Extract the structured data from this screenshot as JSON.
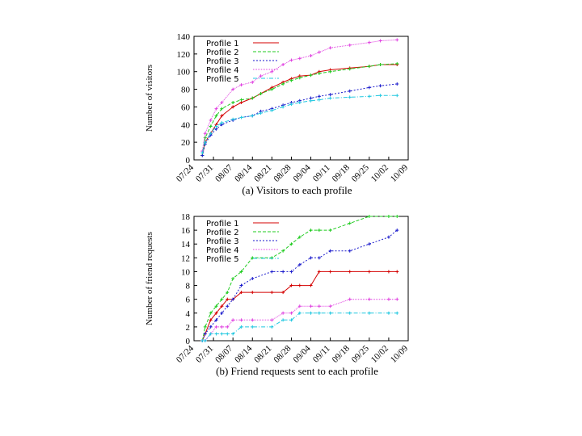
{
  "chart_data": [
    {
      "type": "line",
      "caption": "(a) Visitors to each profile",
      "y_label": "Number of visitors",
      "x": [
        "07/27",
        "07/28",
        "07/30",
        "08/01",
        "08/03",
        "08/07",
        "08/10",
        "08/14",
        "08/17",
        "08/21",
        "08/25",
        "08/28",
        "08/31",
        "09/04",
        "09/07",
        "09/11",
        "09/18",
        "09/25",
        "09/29",
        "10/05"
      ],
      "xlim": [
        "07/24",
        "10/09"
      ],
      "xticks": [
        "07/24",
        "07/31",
        "08/07",
        "08/14",
        "08/21",
        "08/28",
        "09/04",
        "09/11",
        "09/18",
        "09/25",
        "10/02",
        "10/09"
      ],
      "ylim": [
        0,
        140
      ],
      "yticks": [
        0,
        20,
        40,
        60,
        80,
        100,
        120,
        140
      ],
      "legend": "upper-left",
      "series": [
        {
          "name": "Profile 1",
          "color": "#d40000",
          "values": [
            5,
            20,
            30,
            40,
            50,
            60,
            65,
            70,
            75,
            82,
            88,
            92,
            95,
            96,
            100,
            102,
            104,
            106,
            108,
            108
          ]
        },
        {
          "name": "Profile 2",
          "color": "#22cc22",
          "values": [
            5,
            25,
            38,
            50,
            58,
            65,
            68,
            70,
            75,
            80,
            86,
            90,
            93,
            96,
            98,
            100,
            103,
            106,
            108,
            109
          ]
        },
        {
          "name": "Profile 3",
          "color": "#1a1acc",
          "values": [
            5,
            18,
            28,
            35,
            40,
            45,
            48,
            50,
            55,
            58,
            62,
            65,
            67,
            70,
            72,
            74,
            78,
            82,
            84,
            86
          ]
        },
        {
          "name": "Profile 4",
          "color": "#e040e0",
          "values": [
            10,
            30,
            45,
            58,
            65,
            80,
            85,
            88,
            95,
            100,
            108,
            113,
            115,
            118,
            122,
            127,
            130,
            133,
            135,
            136
          ]
        },
        {
          "name": "Profile 5",
          "color": "#22c8e0",
          "values": [
            8,
            20,
            30,
            38,
            42,
            46,
            48,
            50,
            53,
            56,
            60,
            63,
            65,
            67,
            68,
            70,
            71,
            72,
            73,
            73
          ]
        }
      ]
    },
    {
      "type": "line",
      "caption": "(b) Friend requests sent to each profile",
      "y_label": "Number of friend requests",
      "x": [
        "07/27",
        "07/28",
        "07/30",
        "08/01",
        "08/03",
        "08/05",
        "08/07",
        "08/10",
        "08/14",
        "08/21",
        "08/25",
        "08/28",
        "08/31",
        "09/04",
        "09/07",
        "09/11",
        "09/18",
        "09/25",
        "10/02",
        "10/05"
      ],
      "xlim": [
        "07/24",
        "10/09"
      ],
      "xticks": [
        "07/24",
        "07/31",
        "08/07",
        "08/14",
        "08/21",
        "08/28",
        "09/04",
        "09/11",
        "09/18",
        "09/25",
        "10/02",
        "10/09"
      ],
      "ylim": [
        0,
        18
      ],
      "yticks": [
        0,
        2,
        4,
        6,
        8,
        10,
        12,
        14,
        16,
        18
      ],
      "legend": "upper-left",
      "series": [
        {
          "name": "Profile 1",
          "color": "#d40000",
          "values": [
            0,
            1,
            3,
            4,
            5,
            6,
            6,
            7,
            7,
            7,
            7,
            8,
            8,
            8,
            10,
            10,
            10,
            10,
            10,
            10
          ]
        },
        {
          "name": "Profile 2",
          "color": "#22cc22",
          "values": [
            0,
            2,
            4,
            5,
            6,
            7,
            9,
            10,
            12,
            12,
            13,
            14,
            15,
            16,
            16,
            16,
            17,
            18,
            18,
            18
          ]
        },
        {
          "name": "Profile 3",
          "color": "#1a1acc",
          "values": [
            0,
            1,
            2,
            3,
            4,
            5,
            6,
            8,
            9,
            10,
            10,
            10,
            11,
            12,
            12,
            13,
            13,
            14,
            15,
            16
          ]
        },
        {
          "name": "Profile 4",
          "color": "#e040e0",
          "values": [
            0,
            0,
            1,
            2,
            2,
            2,
            3,
            3,
            3,
            3,
            4,
            4,
            5,
            5,
            5,
            5,
            6,
            6,
            6,
            6
          ]
        },
        {
          "name": "Profile 5",
          "color": "#22c8e0",
          "values": [
            0,
            0,
            1,
            1,
            1,
            1,
            1,
            2,
            2,
            2,
            3,
            3,
            4,
            4,
            4,
            4,
            4,
            4,
            4,
            4
          ]
        }
      ]
    }
  ]
}
